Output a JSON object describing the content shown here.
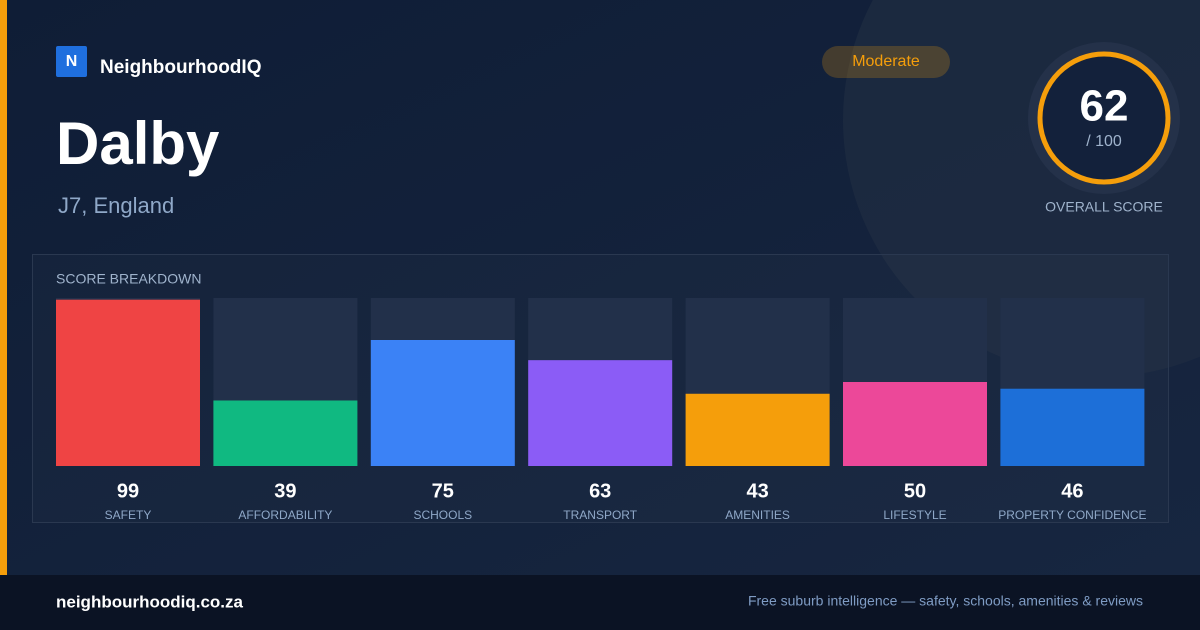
{
  "brand": {
    "logo": "N",
    "name": "NeighbourhoodIQ"
  },
  "title": "Dalby",
  "subtitle": "J7, England",
  "badge": "Moderate",
  "overall": {
    "score": 62,
    "max_label": "/ 100",
    "label": "OVERALL SCORE"
  },
  "chart_data": {
    "type": "bar",
    "title": "SCORE BREAKDOWN",
    "categories": [
      "SAFETY",
      "AFFORDABILITY",
      "SCHOOLS",
      "TRANSPORT",
      "AMENITIES",
      "LIFESTYLE",
      "PROPERTY CONFIDENCE"
    ],
    "values": [
      99,
      39,
      75,
      63,
      43,
      50,
      46
    ],
    "colors": [
      "#ef4444",
      "#10b981",
      "#3b82f6",
      "#8b5cf6",
      "#f59e0b",
      "#ec4899",
      "#1d6fd8"
    ],
    "ylim": [
      0,
      100
    ]
  },
  "footer": {
    "site": "neighbourhoodiq.co.za",
    "tagline": "Free suburb intelligence — safety, schools, amenities & reviews"
  }
}
